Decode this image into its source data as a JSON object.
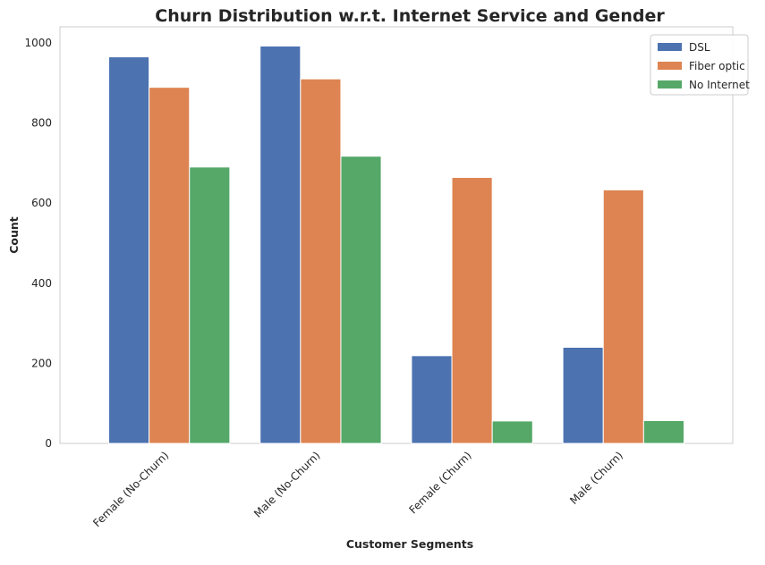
{
  "chart_data": {
    "type": "bar",
    "title": "Churn Distribution w.r.t. Internet Service and Gender",
    "xlabel": "Customer Segments",
    "ylabel": "Count",
    "categories": [
      "Female (No-Churn)",
      "Male (No-Churn)",
      "Female (Churn)",
      "Male (Churn)"
    ],
    "series": [
      {
        "name": "DSL",
        "color": "#4c72b0",
        "values": [
          965,
          992,
          219,
          240
        ]
      },
      {
        "name": "Fiber optic",
        "color": "#dd8452",
        "values": [
          889,
          910,
          664,
          633
        ]
      },
      {
        "name": "No Internet",
        "color": "#55a868",
        "values": [
          690,
          717,
          56,
          57
        ]
      }
    ],
    "yticks": [
      0,
      200,
      400,
      600,
      800,
      1000
    ],
    "ylim": [
      0,
      1040
    ],
    "grid": false,
    "legend_position": "top-right",
    "xtick_rotation": -45
  }
}
